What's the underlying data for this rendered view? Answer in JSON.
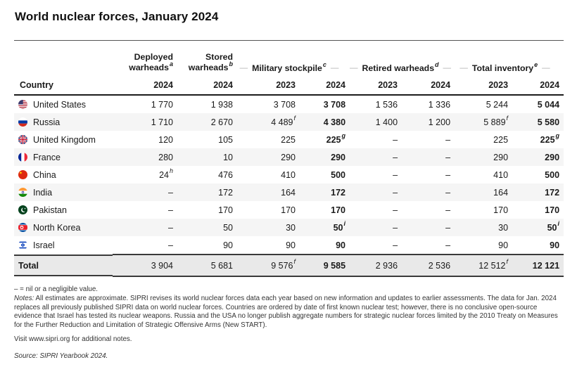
{
  "page_title": "World nuclear forces, January 2024",
  "table": {
    "country_header": "Country",
    "group_dash": "—",
    "groups": {
      "deployed": {
        "line1": "Deployed",
        "line2": "warheads",
        "sup": "a"
      },
      "stored": {
        "line1": "Stored",
        "line2": "warheads",
        "sup": "b"
      },
      "military": {
        "label": "Military stockpile",
        "sup": "c"
      },
      "retired": {
        "label": "Retired warheads",
        "sup": "d"
      },
      "total": {
        "label": "Total inventory",
        "sup": "e"
      }
    },
    "year_cols": [
      "2024",
      "2024",
      "2023",
      "2024",
      "2023",
      "2024",
      "2023",
      "2024"
    ],
    "rows": [
      {
        "country": "United States",
        "flag": "us",
        "cells": [
          {
            "v": "1 770"
          },
          {
            "v": "1 938"
          },
          {
            "v": "3 708"
          },
          {
            "v": "3 708"
          },
          {
            "v": "1 536"
          },
          {
            "v": "1 336"
          },
          {
            "v": "5 244"
          },
          {
            "v": "5 044"
          }
        ]
      },
      {
        "country": "Russia",
        "flag": "ru",
        "cells": [
          {
            "v": "1 710"
          },
          {
            "v": "2 670"
          },
          {
            "v": "4 489",
            "sup": "f"
          },
          {
            "v": "4 380"
          },
          {
            "v": "1 400"
          },
          {
            "v": "1 200"
          },
          {
            "v": "5 889",
            "sup": "f"
          },
          {
            "v": "5 580"
          }
        ]
      },
      {
        "country": "United Kingdom",
        "flag": "gb",
        "cells": [
          {
            "v": "120"
          },
          {
            "v": "105"
          },
          {
            "v": "225"
          },
          {
            "v": "225",
            "sup": "g"
          },
          {
            "v": "–"
          },
          {
            "v": "–"
          },
          {
            "v": "225"
          },
          {
            "v": "225",
            "sup": "g"
          }
        ]
      },
      {
        "country": "France",
        "flag": "fr",
        "cells": [
          {
            "v": "280"
          },
          {
            "v": "10"
          },
          {
            "v": "290"
          },
          {
            "v": "290"
          },
          {
            "v": "–"
          },
          {
            "v": "–"
          },
          {
            "v": "290"
          },
          {
            "v": "290"
          }
        ]
      },
      {
        "country": "China",
        "flag": "cn",
        "cells": [
          {
            "v": "24",
            "sup": "h"
          },
          {
            "v": "476"
          },
          {
            "v": "410"
          },
          {
            "v": "500"
          },
          {
            "v": "–"
          },
          {
            "v": "–"
          },
          {
            "v": "410"
          },
          {
            "v": "500"
          }
        ]
      },
      {
        "country": "India",
        "flag": "in",
        "cells": [
          {
            "v": "–"
          },
          {
            "v": "172"
          },
          {
            "v": "164"
          },
          {
            "v": "172"
          },
          {
            "v": "–"
          },
          {
            "v": "–"
          },
          {
            "v": "164"
          },
          {
            "v": "172"
          }
        ]
      },
      {
        "country": "Pakistan",
        "flag": "pk",
        "cells": [
          {
            "v": "–"
          },
          {
            "v": "170"
          },
          {
            "v": "170"
          },
          {
            "v": "170"
          },
          {
            "v": "–"
          },
          {
            "v": "–"
          },
          {
            "v": "170"
          },
          {
            "v": "170"
          }
        ]
      },
      {
        "country": "North Korea",
        "flag": "kp",
        "cells": [
          {
            "v": "–"
          },
          {
            "v": "50"
          },
          {
            "v": "30"
          },
          {
            "v": "50",
            "sup": "i"
          },
          {
            "v": "–"
          },
          {
            "v": "–"
          },
          {
            "v": "30"
          },
          {
            "v": "50",
            "sup": "i"
          }
        ]
      },
      {
        "country": "Israel",
        "flag": "il",
        "cells": [
          {
            "v": "–"
          },
          {
            "v": "90"
          },
          {
            "v": "90"
          },
          {
            "v": "90"
          },
          {
            "v": "–"
          },
          {
            "v": "–"
          },
          {
            "v": "90"
          },
          {
            "v": "90"
          }
        ]
      },
      {
        "country": "Total",
        "total": true,
        "cells": [
          {
            "v": "3 904"
          },
          {
            "v": "5 681"
          },
          {
            "v": "9 576",
            "sup": "f"
          },
          {
            "v": "9 585"
          },
          {
            "v": "2 936"
          },
          {
            "v": "2 536"
          },
          {
            "v": "12 512",
            "sup": "f"
          },
          {
            "v": "12 121"
          }
        ]
      }
    ]
  },
  "footnotes": {
    "nil_note": "– = nil or a negligible value.",
    "notes_label": "Notes:",
    "notes_text": " All estimates are approximate. SIPRI revises its world nuclear forces data each year based on new information and updates to earlier assessments. The data for Jan. 2024 replaces all previously published SIPRI data on world nuclear forces. Countries are ordered by date of first known nuclear test; however, there is no conclusive open-source evidence that Israel has tested its nuclear weapons. Russia and the USA no longer publish aggregate numbers for strategic nuclear forces limited by the 2010 Treaty on Measures for the Further Reduction and Limitation of Strategic Offensive Arms (New START).",
    "visit": "Visit www.sipri.org for additional notes.",
    "source": "Source: SIPRI Yearbook 2024."
  },
  "colors": {
    "text": "#1a1a1a",
    "stripe": "#f5f5f5",
    "total_row_bg": "#e9e9e9",
    "rule_dark": "#1c1c1c",
    "dash_decoration": "#b0b0b0"
  },
  "chart_data": {
    "type": "table",
    "title": "World nuclear forces, January 2024",
    "columns": [
      "Country",
      "Deployed warheads 2024",
      "Stored warheads 2024",
      "Military stockpile 2023",
      "Military stockpile 2024",
      "Retired warheads 2023",
      "Retired warheads 2024",
      "Total inventory 2023",
      "Total inventory 2024"
    ],
    "rows": [
      [
        "United States",
        "1 770",
        "1 938",
        "3 708",
        "3 708",
        "1 536",
        "1 336",
        "5 244",
        "5 044"
      ],
      [
        "Russia",
        "1 710",
        "2 670",
        "4 489^f",
        "4 380",
        "1 400",
        "1 200",
        "5 889^f",
        "5 580"
      ],
      [
        "United Kingdom",
        "120",
        "105",
        "225",
        "225^g",
        "–",
        "–",
        "225",
        "225^g"
      ],
      [
        "France",
        "280",
        "10",
        "290",
        "290",
        "–",
        "–",
        "290",
        "290"
      ],
      [
        "China",
        "24^h",
        "476",
        "410",
        "500",
        "–",
        "–",
        "410",
        "500"
      ],
      [
        "India",
        "–",
        "172",
        "164",
        "172",
        "–",
        "–",
        "164",
        "172"
      ],
      [
        "Pakistan",
        "–",
        "170",
        "170",
        "170",
        "–",
        "–",
        "170",
        "170"
      ],
      [
        "North Korea",
        "–",
        "50",
        "30",
        "50^i",
        "–",
        "–",
        "30",
        "50^i"
      ],
      [
        "Israel",
        "–",
        "90",
        "90",
        "90",
        "–",
        "–",
        "90",
        "90"
      ],
      [
        "Total",
        "3 904",
        "5 681",
        "9 576^f",
        "9 585",
        "2 936",
        "2 536",
        "12 512^f",
        "12 121"
      ]
    ],
    "footnote_markers": [
      "a",
      "b",
      "c",
      "d",
      "e",
      "f",
      "g",
      "h",
      "i"
    ],
    "layout": "striped rows; bold 2024 columns for Military stockpile and Total inventory"
  }
}
